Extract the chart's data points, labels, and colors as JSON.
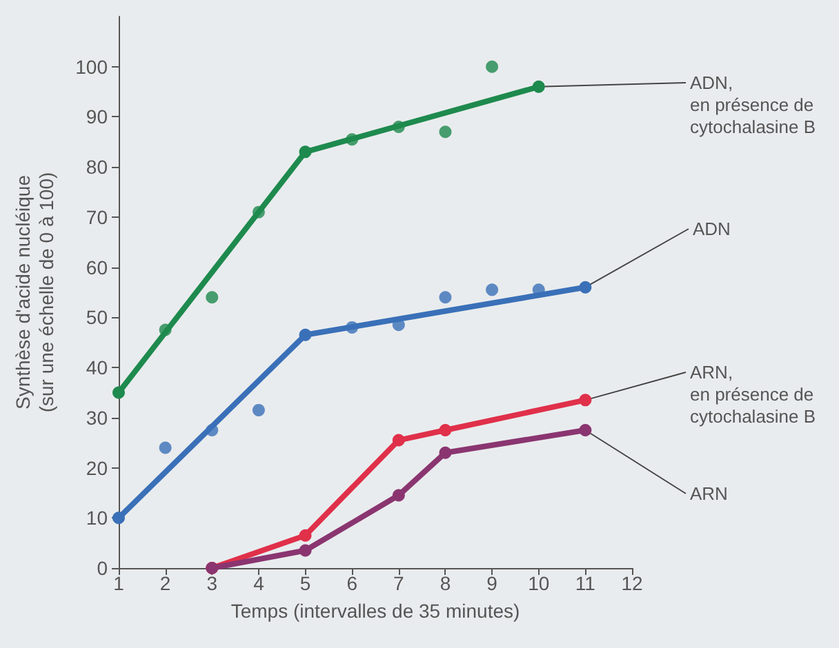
{
  "chart_data": {
    "type": "line",
    "xlabel": "Temps (intervalles de 35 minutes)",
    "ylabel": "Synthèse d'acide nucléique\n(sur une échelle de 0 à 100)",
    "xlim": [
      1,
      12
    ],
    "xticks": [
      1,
      2,
      3,
      4,
      5,
      6,
      7,
      8,
      9,
      10,
      11,
      12
    ],
    "ylim": [
      0,
      110
    ],
    "yticks": [
      0,
      10,
      20,
      30,
      40,
      50,
      60,
      70,
      80,
      90,
      100
    ],
    "grid": false,
    "legend": false,
    "marker": "circle",
    "series": [
      {
        "name": "ADN,\nen présence de\ncytochalasine B",
        "color": "#1e8a4e",
        "x": [
          1,
          5,
          10
        ],
        "values": [
          35,
          83,
          96
        ]
      },
      {
        "name": "ADN",
        "color": "#3a70b8",
        "x": [
          1,
          5,
          11
        ],
        "values": [
          10,
          46.5,
          56
        ]
      },
      {
        "name": "ARN,\nen présence de\ncytochalasine B",
        "color": "#e0304a",
        "x": [
          3,
          5,
          7,
          8,
          11
        ],
        "values": [
          0,
          6.5,
          25.5,
          27.5,
          33.5
        ]
      },
      {
        "name": "ARN",
        "color": "#8a3570",
        "x": [
          3,
          5,
          7,
          8,
          11
        ],
        "values": [
          0,
          3.5,
          14.5,
          23,
          27.5
        ]
      },
      {
        "type": "scatter",
        "color": "#1e8a4e",
        "x": [
          2,
          3,
          4,
          6,
          7,
          8,
          9
        ],
        "values": [
          47.5,
          54,
          71,
          85.5,
          88,
          87,
          100
        ]
      },
      {
        "type": "scatter",
        "color": "#3a70b8",
        "x": [
          2,
          3,
          4,
          6,
          7,
          8,
          9,
          10
        ],
        "values": [
          24,
          27.5,
          31.5,
          48,
          48.5,
          54,
          55.5,
          55.5
        ]
      }
    ]
  }
}
